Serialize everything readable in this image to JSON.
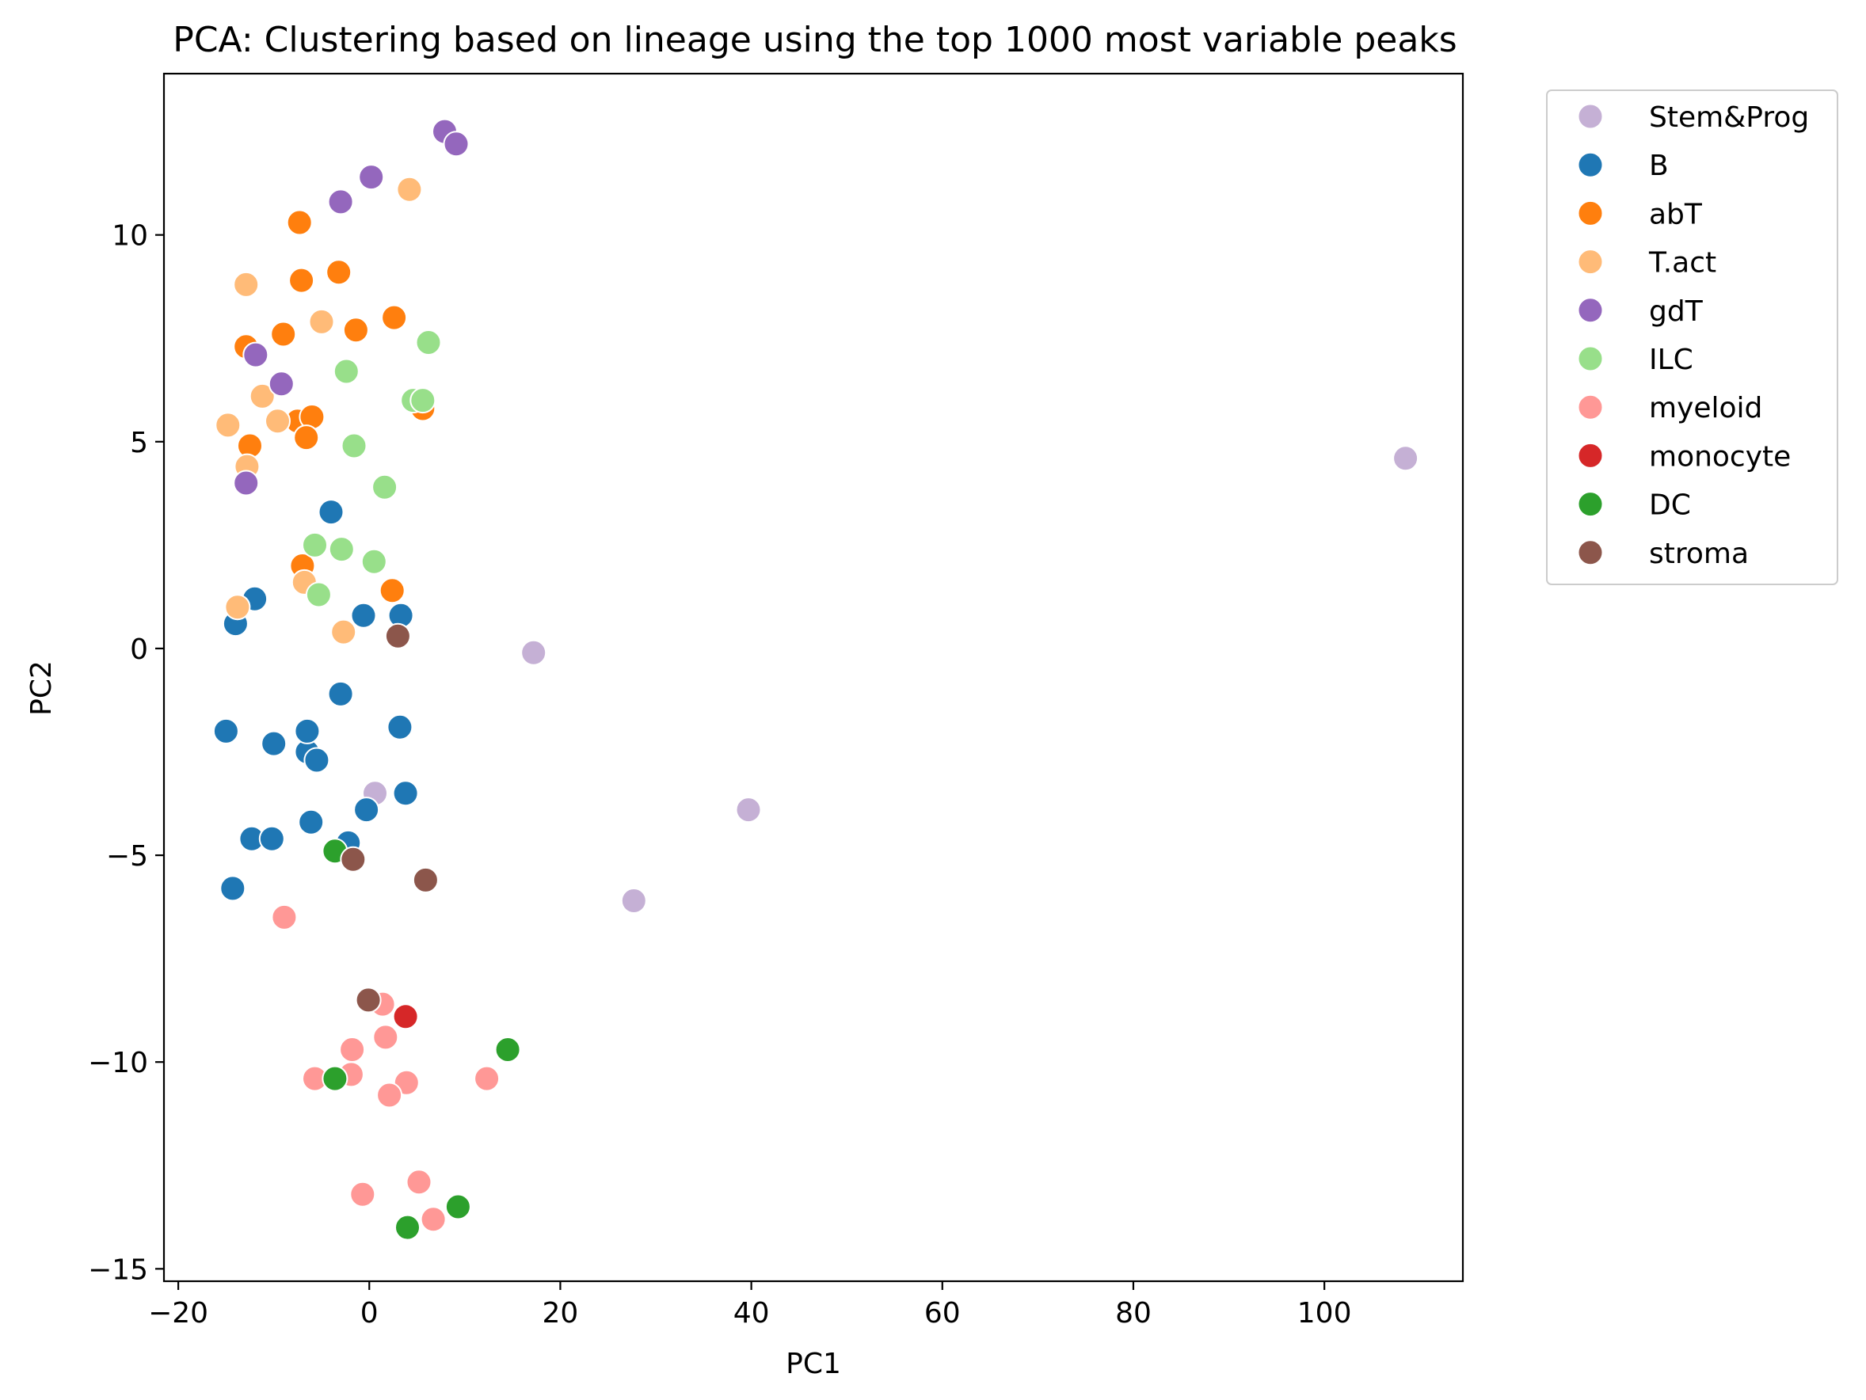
{
  "chart_data": {
    "type": "scatter",
    "title": "PCA: Clustering based on lineage using the top 1000 most variable peaks",
    "xlabel": "PC1",
    "ylabel": "PC2",
    "xlim": [
      -21.5,
      114.5
    ],
    "ylim": [
      -15.3,
      13.9
    ],
    "xticks": [
      -20,
      0,
      20,
      40,
      60,
      80,
      100
    ],
    "yticks": [
      -15,
      -10,
      -5,
      0,
      5,
      10
    ],
    "grid": false,
    "legend_position": "outside-upper-right",
    "series": [
      {
        "name": "Stem&Prog",
        "color": "#c5b0d5",
        "points": [
          [
            108.5,
            4.6
          ],
          [
            17.2,
            -0.1
          ],
          [
            39.7,
            -3.9
          ],
          [
            27.7,
            -6.1
          ],
          [
            0.6,
            -3.5
          ]
        ]
      },
      {
        "name": "B",
        "color": "#1f77b4",
        "points": [
          [
            -14.0,
            0.6
          ],
          [
            -12.0,
            1.2
          ],
          [
            -4.0,
            3.3
          ],
          [
            -0.6,
            0.8
          ],
          [
            3.3,
            0.8
          ],
          [
            -3.0,
            -1.1
          ],
          [
            -15.0,
            -2.0
          ],
          [
            -10.0,
            -2.3
          ],
          [
            -6.5,
            -2.5
          ],
          [
            -6.5,
            -2.0
          ],
          [
            -5.5,
            -2.7
          ],
          [
            3.2,
            -1.9
          ],
          [
            -0.3,
            -3.9
          ],
          [
            3.8,
            -3.5
          ],
          [
            -6.1,
            -4.2
          ],
          [
            -12.3,
            -4.6
          ],
          [
            -10.2,
            -4.6
          ],
          [
            -2.2,
            -4.7
          ],
          [
            -14.3,
            -5.8
          ]
        ]
      },
      {
        "name": "abT",
        "color": "#ff7f0e",
        "points": [
          [
            -7.3,
            10.3
          ],
          [
            -7.1,
            8.9
          ],
          [
            -3.2,
            9.1
          ],
          [
            -12.9,
            7.3
          ],
          [
            -9.0,
            7.6
          ],
          [
            -1.4,
            7.7
          ],
          [
            2.6,
            8.0
          ],
          [
            -12.5,
            4.9
          ],
          [
            -7.5,
            5.5
          ],
          [
            -6.0,
            5.6
          ],
          [
            -6.6,
            5.1
          ],
          [
            5.6,
            5.8
          ],
          [
            -7.0,
            2.0
          ],
          [
            2.4,
            1.4
          ]
        ]
      },
      {
        "name": "T.act",
        "color": "#ffbb78",
        "points": [
          [
            4.2,
            11.1
          ],
          [
            -12.9,
            8.8
          ],
          [
            -5.0,
            7.9
          ],
          [
            -11.2,
            6.1
          ],
          [
            -14.8,
            5.4
          ],
          [
            -9.6,
            5.5
          ],
          [
            -12.8,
            4.4
          ],
          [
            -6.8,
            1.6
          ],
          [
            -13.8,
            1.0
          ],
          [
            -2.7,
            0.4
          ]
        ]
      },
      {
        "name": "gdT",
        "color": "#9467bd",
        "points": [
          [
            7.9,
            12.5
          ],
          [
            9.1,
            12.2
          ],
          [
            0.2,
            11.4
          ],
          [
            -3.0,
            10.8
          ],
          [
            -11.9,
            7.1
          ],
          [
            -9.2,
            6.4
          ],
          [
            -12.9,
            4.0
          ]
        ]
      },
      {
        "name": "ILC",
        "color": "#98df8a",
        "points": [
          [
            6.2,
            7.4
          ],
          [
            -2.4,
            6.7
          ],
          [
            4.6,
            6.0
          ],
          [
            5.6,
            6.0
          ],
          [
            -1.6,
            4.9
          ],
          [
            1.6,
            3.9
          ],
          [
            -5.7,
            2.5
          ],
          [
            -2.9,
            2.4
          ],
          [
            0.5,
            2.1
          ],
          [
            -5.3,
            1.3
          ]
        ]
      },
      {
        "name": "myeloid",
        "color": "#ff9896",
        "points": [
          [
            -8.9,
            -6.5
          ],
          [
            1.4,
            -8.6
          ],
          [
            1.7,
            -9.4
          ],
          [
            -1.8,
            -9.7
          ],
          [
            -5.7,
            -10.4
          ],
          [
            -1.9,
            -10.3
          ],
          [
            3.9,
            -10.5
          ],
          [
            2.1,
            -10.8
          ],
          [
            12.3,
            -10.4
          ],
          [
            5.2,
            -12.9
          ],
          [
            -0.7,
            -13.2
          ],
          [
            6.7,
            -13.8
          ]
        ]
      },
      {
        "name": "monocyte",
        "color": "#d62728",
        "points": [
          [
            3.8,
            -8.9
          ]
        ]
      },
      {
        "name": "DC",
        "color": "#2ca02c",
        "points": [
          [
            -3.6,
            -4.9
          ],
          [
            14.5,
            -9.7
          ],
          [
            -3.6,
            -10.4
          ],
          [
            9.3,
            -13.5
          ],
          [
            4.0,
            -14.0
          ]
        ]
      },
      {
        "name": "stroma",
        "color": "#8c564b",
        "points": [
          [
            3.0,
            0.3
          ],
          [
            -1.7,
            -5.1
          ],
          [
            5.9,
            -5.6
          ],
          [
            -0.1,
            -8.5
          ]
        ]
      }
    ]
  }
}
